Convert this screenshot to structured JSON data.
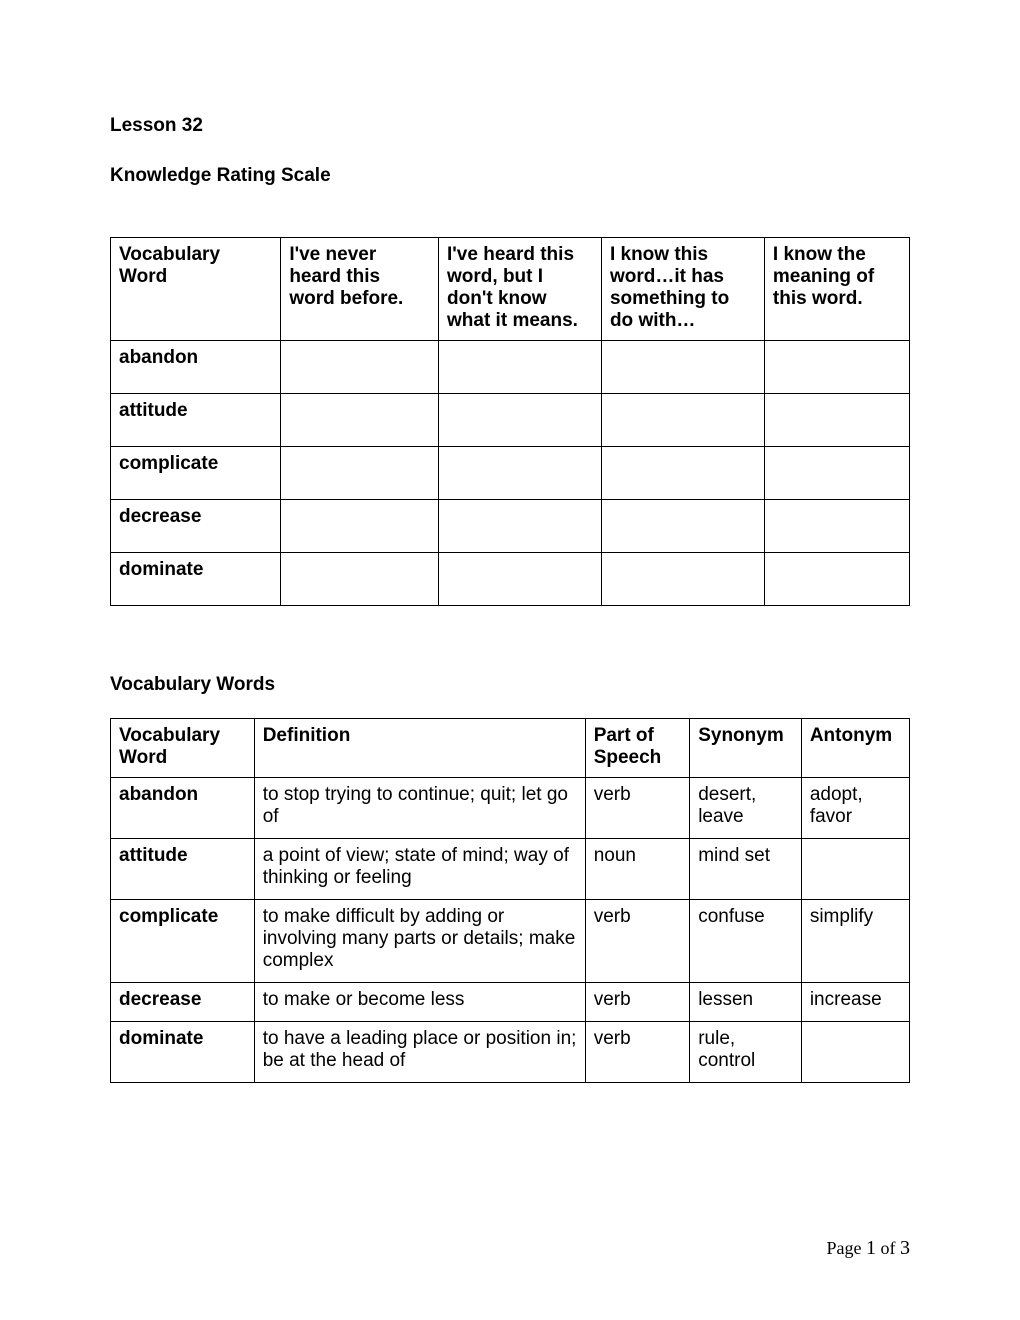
{
  "lesson_title": "Lesson 32",
  "section_rating_title": "Knowledge Rating Scale",
  "rating_table": {
    "headers": {
      "c1": "Vocabulary Word",
      "c2": "I've never heard this word before.",
      "c3": "I've heard this word, but I don't know what it means.",
      "c4": "I know this word…it has something to do with…",
      "c5": "I know the meaning of this word."
    },
    "rows": [
      "abandon",
      "attitude",
      "complicate",
      "decrease",
      "dominate"
    ]
  },
  "section_vocab_title": "Vocabulary Words",
  "vocab_table": {
    "headers": {
      "word": "Vocabulary Word",
      "def": "Definition",
      "pos": "Part of Speech",
      "syn": "Synonym",
      "ant": "Antonym"
    },
    "rows": [
      {
        "word": "abandon",
        "def": "to stop trying to continue; quit; let go of",
        "pos": "verb",
        "syn": "desert, leave",
        "ant": "adopt, favor"
      },
      {
        "word": "attitude",
        "def": "a point of view; state of mind; way of thinking or feeling",
        "pos": "noun",
        "syn": "mind set",
        "ant": ""
      },
      {
        "word": "complicate",
        "def": "to make difficult by adding or involving many parts or details; make complex",
        "pos": "verb",
        "syn": "confuse",
        "ant": "simplify"
      },
      {
        "word": "decrease",
        "def": "to make or become less",
        "pos": "verb",
        "syn": "lessen",
        "ant": "increase"
      },
      {
        "word": "dominate",
        "def": "to have a leading place or position in; be at the head of",
        "pos": "verb",
        "syn": "rule, control",
        "ant": ""
      }
    ]
  },
  "page_label": "Page ",
  "page_current": "1",
  "page_of": " of ",
  "page_total": "3"
}
